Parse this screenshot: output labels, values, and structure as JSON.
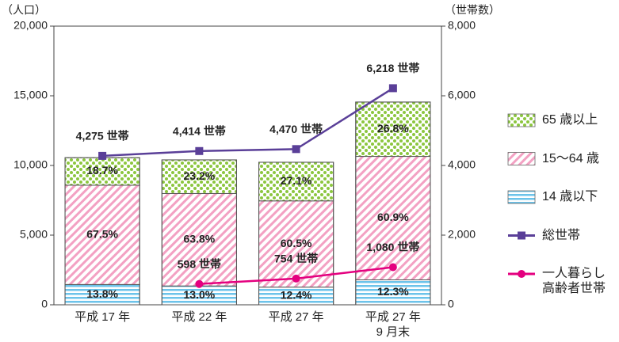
{
  "chart_data": {
    "type": "bar",
    "y_label": "（人口）",
    "y2_label": "（世帯数）",
    "categories": [
      "平成 17 年",
      "平成 22 年",
      "平成 27 年",
      "平成 27 年\n9 月末"
    ],
    "totals": [
      10560,
      10400,
      10230,
      14550
    ],
    "series": [
      {
        "name": "14 歳以下",
        "color": "#6cc3ea",
        "pattern": "horizontal",
        "values": [
          13.8,
          13.0,
          12.4,
          12.3
        ],
        "value_labels": [
          "13.8%",
          "13.0%",
          "12.4%",
          "12.3%"
        ]
      },
      {
        "name": "15～64 歳",
        "color": "#f3a1c3",
        "pattern": "diagonal",
        "values": [
          67.5,
          63.8,
          60.5,
          60.9
        ],
        "value_labels": [
          "67.5%",
          "63.8%",
          "60.5%",
          "60.9%"
        ]
      },
      {
        "name": "65 歳以上",
        "color": "#8cc63f",
        "pattern": "dots",
        "values": [
          18.7,
          23.2,
          27.1,
          26.8
        ],
        "value_labels": [
          "18.7%",
          "23.2%",
          "27.1%",
          "26.8%"
        ]
      },
      {
        "name": "総世帯",
        "type": "line",
        "axis": "y2",
        "color": "#5a3f98",
        "marker": "square",
        "values": [
          4275,
          4414,
          4470,
          6218
        ],
        "value_labels": [
          "4,275 世帯",
          "4,414 世帯",
          "4,470 世帯",
          "6,218 世帯"
        ]
      },
      {
        "name": "一人暮らし\n高齢者世帯",
        "type": "line",
        "axis": "y2",
        "color": "#e4007f",
        "marker": "circle",
        "values": [
          null,
          598,
          754,
          1080
        ],
        "value_labels": [
          null,
          "598 世帯",
          "754 世帯",
          "1,080 世帯"
        ]
      }
    ],
    "legend_order": [
      2,
      1,
      0,
      3,
      4
    ],
    "ylim": [
      0,
      20000
    ],
    "yticks": [
      0,
      {
        "value": 5000,
        "label": "5,000"
      },
      {
        "value": 10000,
        "label": "10,000"
      },
      {
        "value": 15000,
        "label": "15,000"
      },
      {
        "value": 20000,
        "label": "20,000"
      }
    ],
    "y2lim": [
      0,
      8000
    ],
    "y2ticks": [
      0,
      {
        "value": 2000,
        "label": "2,000"
      },
      {
        "value": 4000,
        "label": "4,000"
      },
      {
        "value": 6000,
        "label": "6,000"
      },
      {
        "value": 8000,
        "label": "8,000"
      }
    ]
  }
}
